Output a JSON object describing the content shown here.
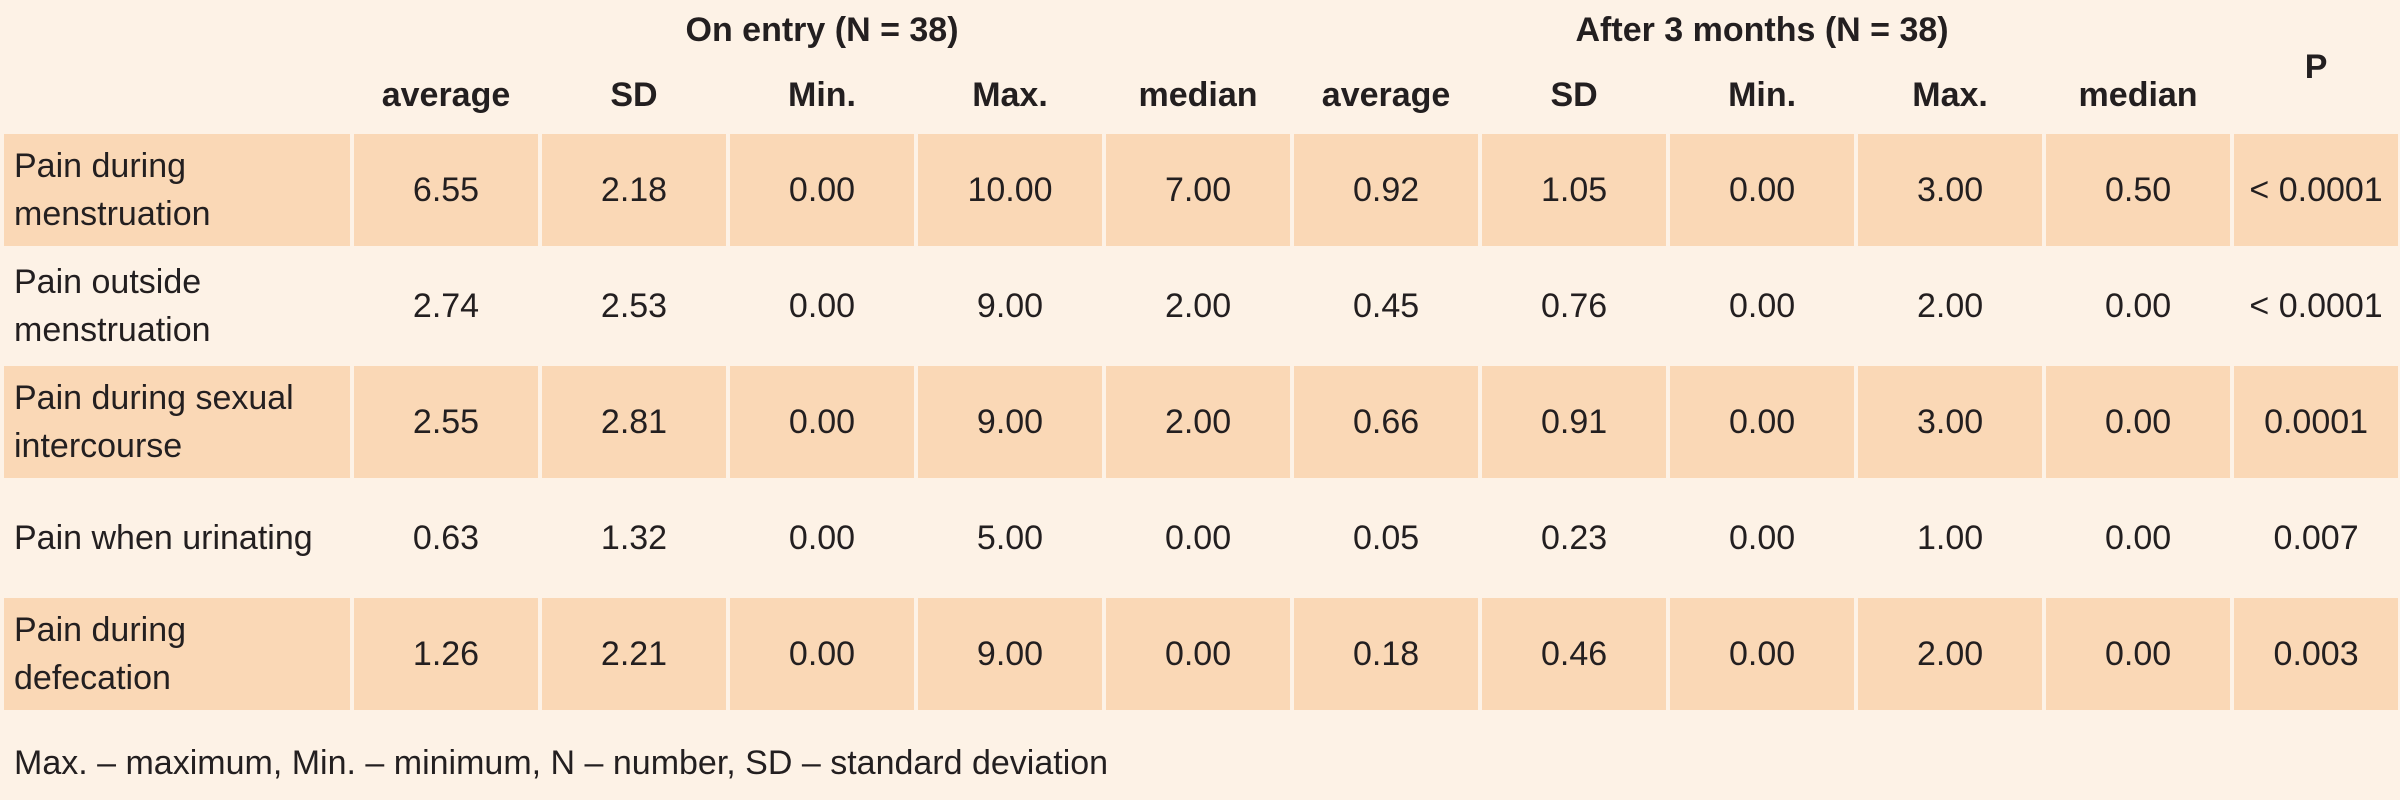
{
  "header": {
    "group_entry": "On entry (N = 38)",
    "group_after": "After 3 months (N = 38)",
    "p_label": "P",
    "columns": [
      "average",
      "SD",
      "Min.",
      "Max.",
      "median",
      "average",
      "SD",
      "Min.",
      "Max.",
      "median"
    ]
  },
  "rows": [
    {
      "label": "Pain during menstruation",
      "values": [
        "6.55",
        "2.18",
        "0.00",
        "10.00",
        "7.00",
        "0.92",
        "1.05",
        "0.00",
        "3.00",
        "0.50"
      ],
      "p": "< 0.0001"
    },
    {
      "label": "Pain outside menstruation",
      "values": [
        "2.74",
        "2.53",
        "0.00",
        "9.00",
        "2.00",
        "0.45",
        "0.76",
        "0.00",
        "2.00",
        "0.00"
      ],
      "p": "< 0.0001"
    },
    {
      "label": "Pain during sexual intercourse",
      "values": [
        "2.55",
        "2.81",
        "0.00",
        "9.00",
        "2.00",
        "0.66",
        "0.91",
        "0.00",
        "3.00",
        "0.00"
      ],
      "p": "0.0001"
    },
    {
      "label": "Pain when urinating",
      "values": [
        "0.63",
        "1.32",
        "0.00",
        "5.00",
        "0.00",
        "0.05",
        "0.23",
        "0.00",
        "1.00",
        "0.00"
      ],
      "p": "0.007"
    },
    {
      "label": "Pain during defecation",
      "values": [
        "1.26",
        "2.21",
        "0.00",
        "9.00",
        "0.00",
        "0.18",
        "0.46",
        "0.00",
        "2.00",
        "0.00"
      ],
      "p": "0.003"
    }
  ],
  "footnote": "Max. – maximum, Min. – minimum, N – number, SD – standard deviation",
  "colors": {
    "background": "#fdf2e6",
    "shaded_row": "#fad8b6"
  }
}
